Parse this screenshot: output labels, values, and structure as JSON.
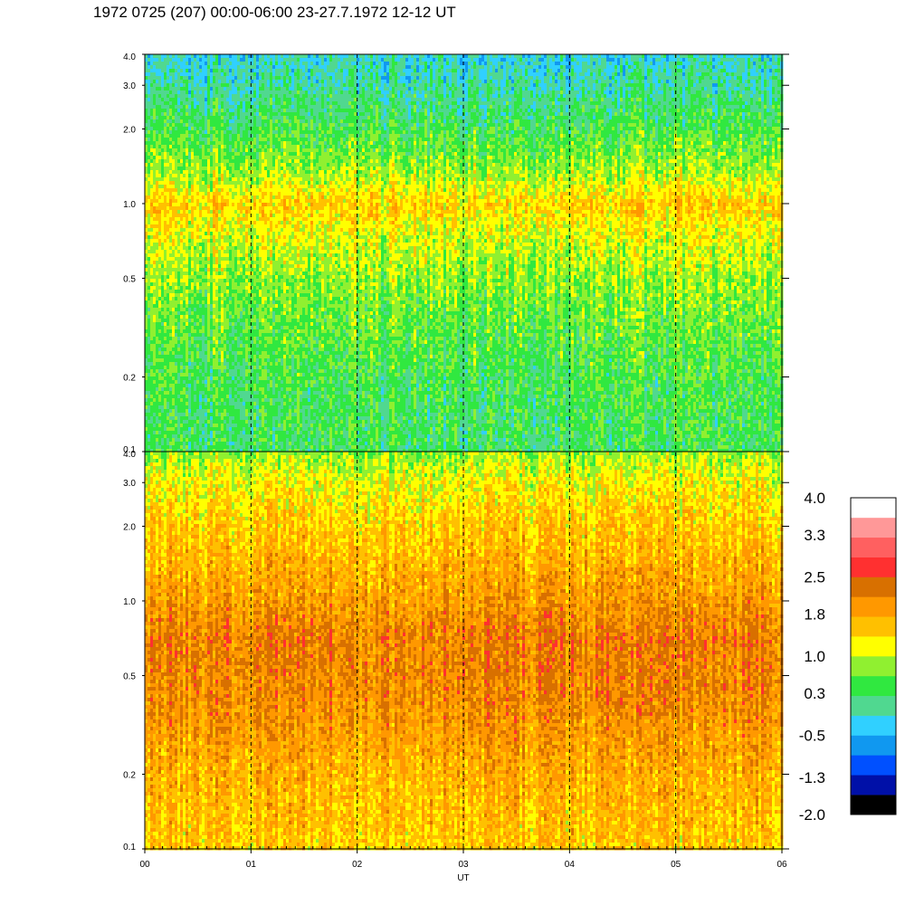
{
  "title": "1972 0725 (207) 00:00-06:00 23-27.7.1972  12-12 UT",
  "chart_data": {
    "type": "heatmap",
    "xlabel": "UT",
    "x_tick_labels": [
      "00",
      "01",
      "02",
      "03",
      "04",
      "05",
      "06"
    ],
    "x_range": [
      0,
      6
    ],
    "dashed_vertical_lines_at": [
      1,
      2,
      3,
      4,
      5
    ],
    "y_scale": "log",
    "y_tick_labels": [
      "0.1",
      "0.2",
      "0.5",
      "1.0",
      "2.0",
      "3.0",
      "4.0"
    ],
    "y_range": [
      0.1,
      4.0
    ],
    "panels": [
      {
        "description_key": "upper",
        "level_profile": [
          {
            "y": 0.1,
            "level": 0.3
          },
          {
            "y": 0.2,
            "level": 0.4
          },
          {
            "y": 0.35,
            "level": 0.6
          },
          {
            "y": 0.5,
            "level": 0.8
          },
          {
            "y": 0.75,
            "level": 1.1
          },
          {
            "y": 1.0,
            "level": 1.45
          },
          {
            "y": 1.3,
            "level": 0.9
          },
          {
            "y": 2.0,
            "level": 0.4
          },
          {
            "y": 3.0,
            "level": 0.0
          },
          {
            "y": 4.0,
            "level": -0.2
          }
        ]
      },
      {
        "description_key": "lower",
        "level_profile": [
          {
            "y": 0.1,
            "level": 1.5
          },
          {
            "y": 0.2,
            "level": 1.7
          },
          {
            "y": 0.35,
            "level": 2.0
          },
          {
            "y": 0.5,
            "level": 2.1
          },
          {
            "y": 0.7,
            "level": 2.15
          },
          {
            "y": 1.0,
            "level": 1.9
          },
          {
            "y": 2.0,
            "level": 1.5
          },
          {
            "y": 3.0,
            "level": 1.2
          },
          {
            "y": 4.0,
            "level": 0.8
          }
        ]
      }
    ],
    "colorbar": {
      "tick_labels": [
        "4.0",
        "3.3",
        "2.5",
        "1.8",
        "1.0",
        "0.3",
        "-0.5",
        "-1.3",
        "-2.0"
      ],
      "range": [
        -2.0,
        4.0
      ],
      "colors": [
        "#000000",
        "#0010a8",
        "#0050ff",
        "#1098f0",
        "#30d0ff",
        "#50d890",
        "#30e840",
        "#90f030",
        "#ffff00",
        "#ffc000",
        "#ff9800",
        "#d87000",
        "#ff3030",
        "#ff6060",
        "#ff9898",
        "#ffffff"
      ]
    }
  }
}
